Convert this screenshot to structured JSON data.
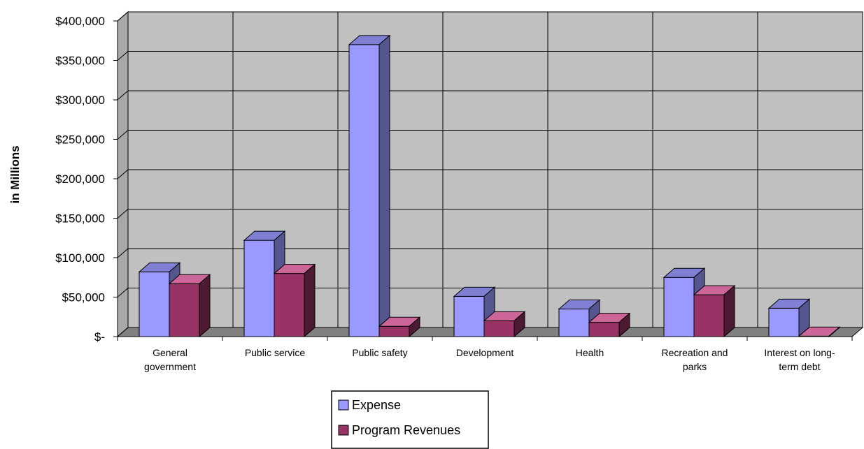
{
  "chart_data": {
    "type": "bar",
    "title": "",
    "xlabel": "",
    "ylabel": "in Millions",
    "ylim": [
      0,
      400000
    ],
    "ytick_step": 50000,
    "ytick_labels": [
      "$-",
      "$50,000",
      "$100,000",
      "$150,000",
      "$200,000",
      "$250,000",
      "$300,000",
      "$350,000",
      "$400,000"
    ],
    "categories": [
      [
        "General",
        "government"
      ],
      [
        "Public service"
      ],
      [
        "Public safety"
      ],
      [
        "Development"
      ],
      [
        "Health"
      ],
      [
        "Recreation and",
        "parks"
      ],
      [
        "Interest on long-",
        "term debt"
      ]
    ],
    "series": [
      {
        "name": "Expense",
        "values": [
          82000,
          122000,
          370000,
          51000,
          35000,
          75000,
          36000
        ]
      },
      {
        "name": "Program Revenues",
        "values": [
          67000,
          80000,
          13000,
          20000,
          18000,
          53000,
          500
        ]
      }
    ],
    "grid": true,
    "legend_position": "bottom",
    "colors": {
      "series_front": [
        "#9999ff",
        "#993366"
      ],
      "series_top": [
        "#7f7fd4",
        "#cc6699"
      ],
      "series_side": [
        "#55558f",
        "#4d1a33"
      ],
      "plot_background": "#c0c0c0",
      "floor": "#808080"
    }
  }
}
